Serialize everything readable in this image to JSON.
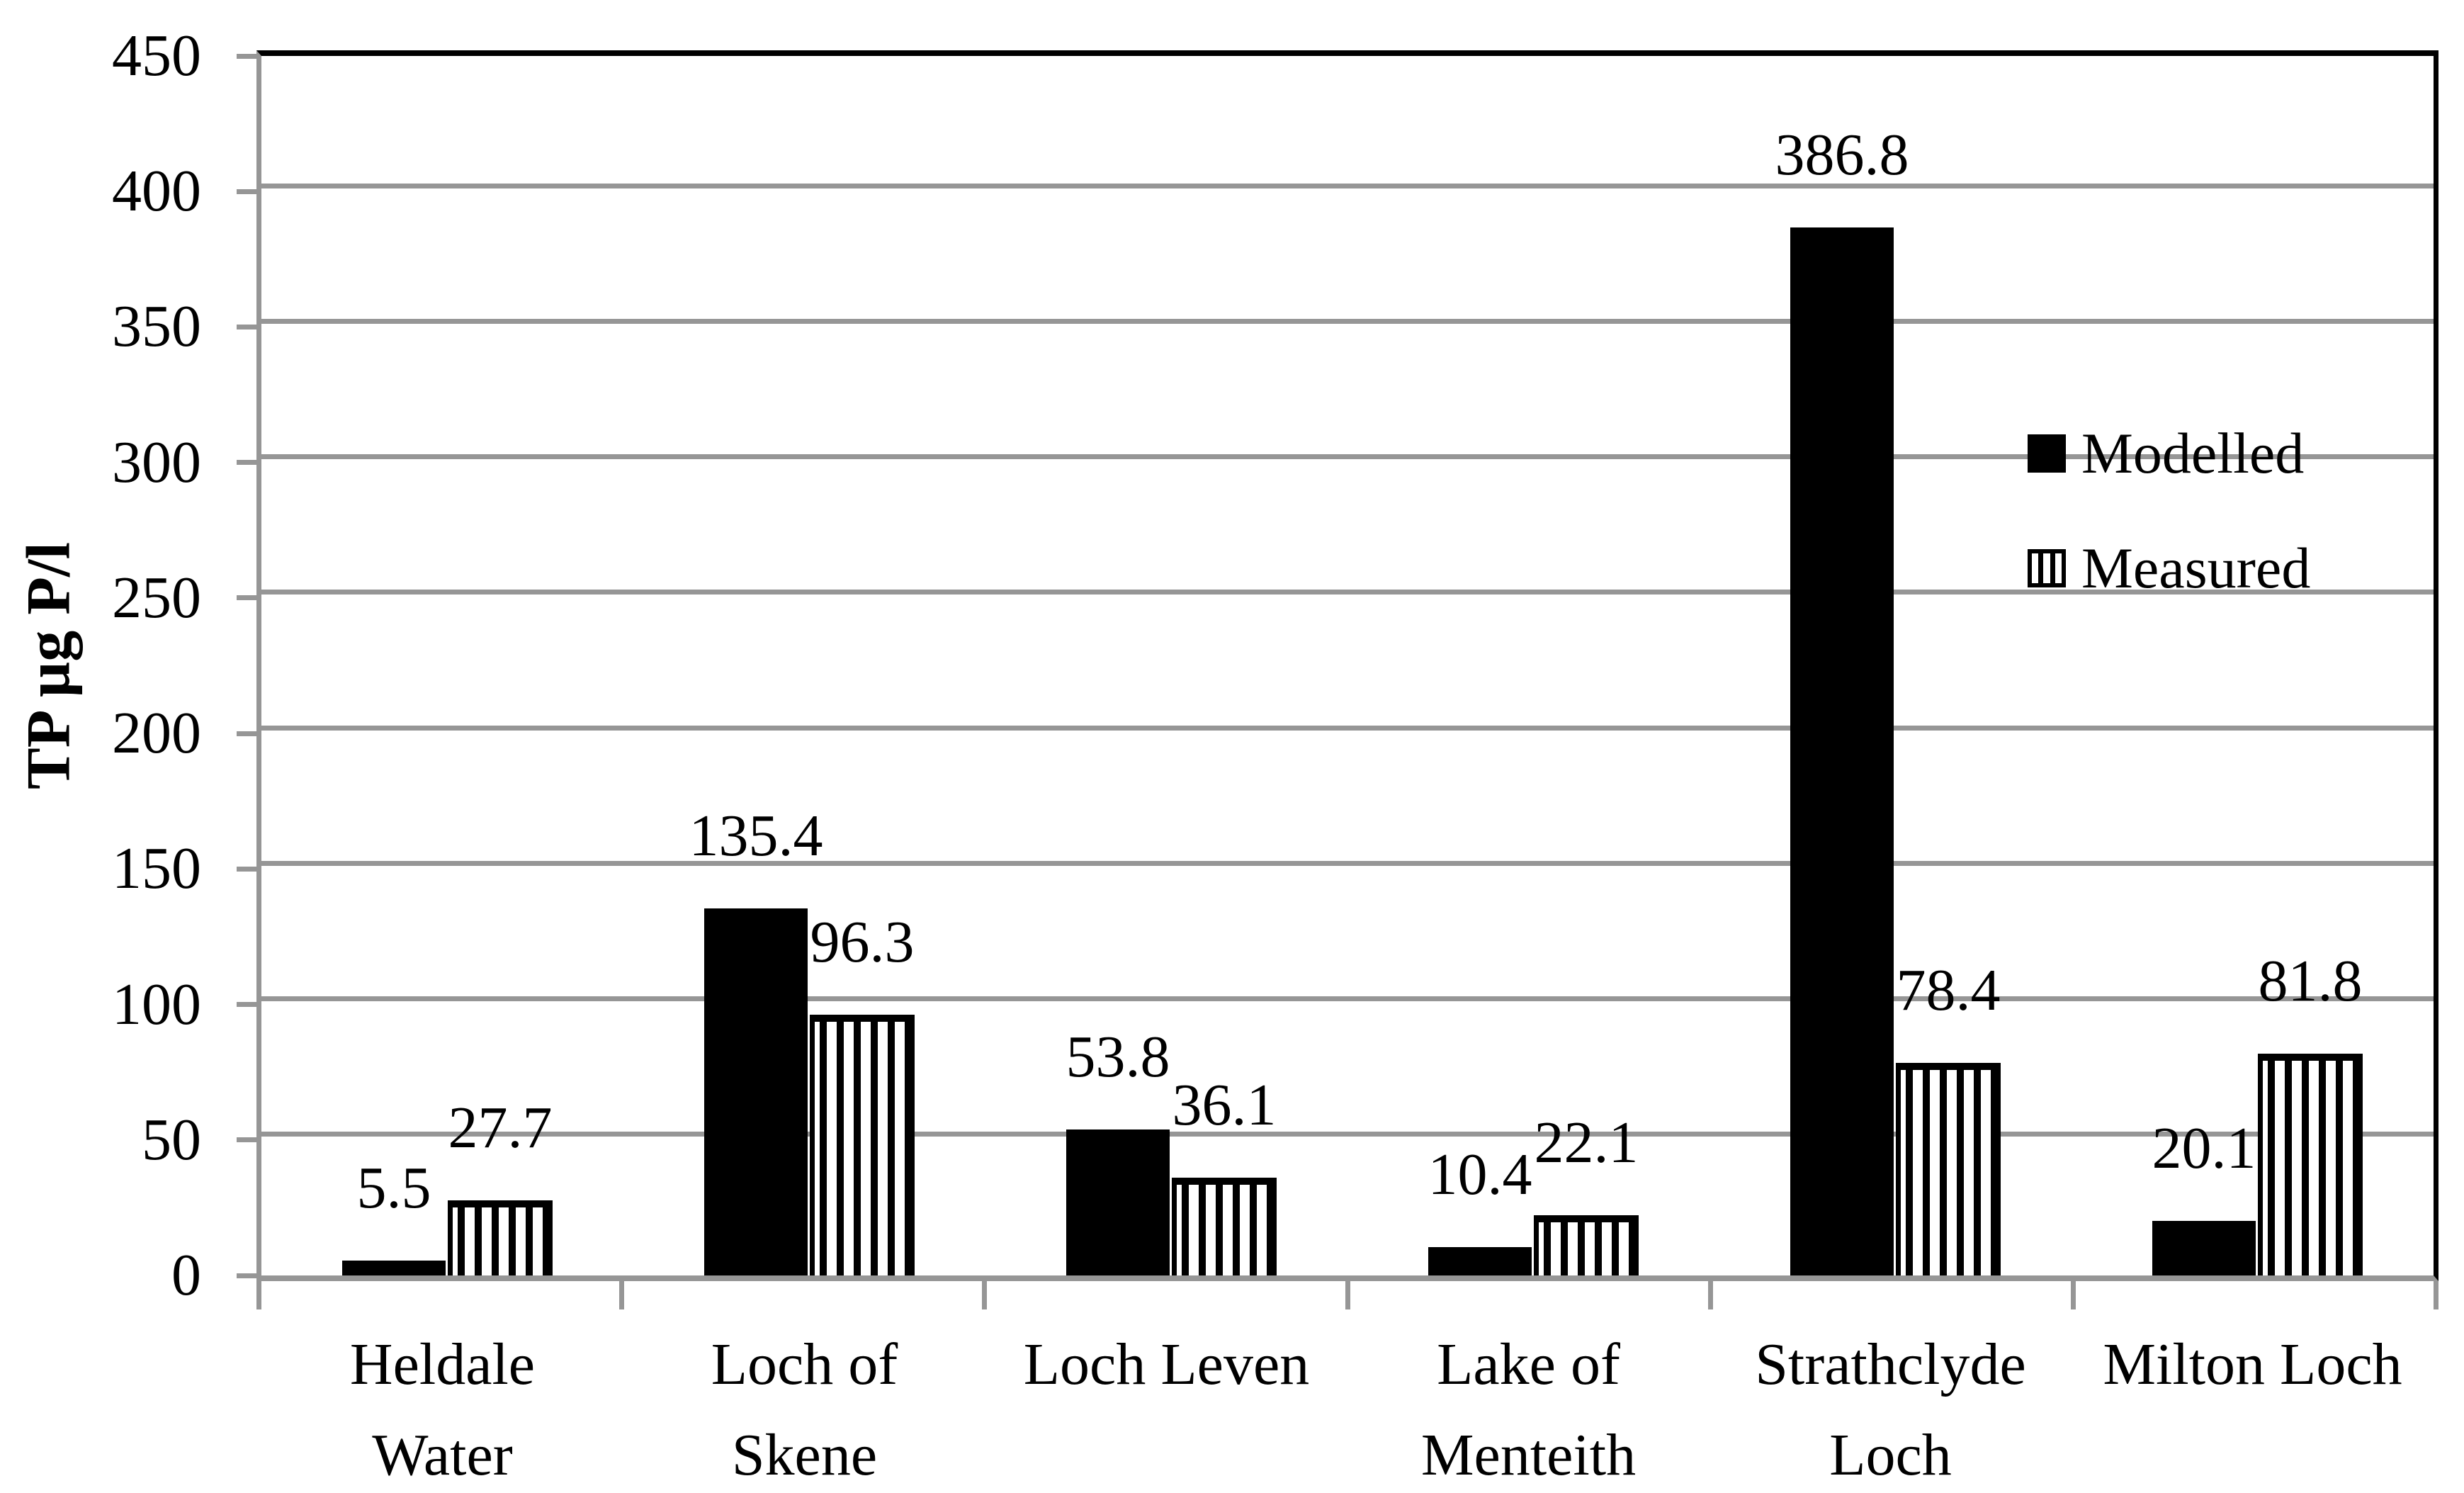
{
  "chart_data": {
    "type": "bar",
    "title": "",
    "xlabel": "",
    "ylabel": "TP µg P/l",
    "ylim": [
      0,
      450
    ],
    "ytick_step": 50,
    "yticks": [
      0,
      50,
      100,
      150,
      200,
      250,
      300,
      350,
      400,
      450
    ],
    "ytick_labels": [
      "0",
      "50",
      "100",
      "150",
      "200",
      "250",
      "300",
      "350",
      "400",
      "450"
    ],
    "grid": "horizontal-gray",
    "legend_position": "inside-right",
    "categories": [
      {
        "label": "Heldale Water",
        "lines": [
          "Heldale",
          "Water"
        ]
      },
      {
        "label": "Loch of Skene",
        "lines": [
          "Loch of",
          "Skene"
        ]
      },
      {
        "label": "Loch Leven",
        "lines": [
          "Loch Leven"
        ]
      },
      {
        "label": "Lake of Menteith",
        "lines": [
          "Lake of",
          "Menteith"
        ]
      },
      {
        "label": "Strathclyde Loch",
        "lines": [
          "Strathclyde",
          "Loch"
        ]
      },
      {
        "label": "Milton Loch",
        "lines": [
          "Milton Loch"
        ]
      }
    ],
    "series": [
      {
        "name": "Modelled",
        "pattern": "solid-black",
        "values": [
          5.5,
          135.4,
          53.8,
          10.4,
          386.8,
          20.1
        ],
        "data_labels": [
          "5.5",
          "135.4",
          "53.8",
          "10.4",
          "386.8",
          "20.1"
        ]
      },
      {
        "name": "Measured",
        "pattern": "vertical-stripes",
        "values": [
          27.7,
          96.3,
          36.1,
          22.1,
          78.4,
          81.8
        ],
        "data_labels": [
          "27.7",
          "96.3",
          "36.1",
          "22.1",
          "78.4",
          "81.8"
        ]
      }
    ],
    "colors": {
      "bar_fill": "#000000",
      "grid": "#969696",
      "axis": "#969696",
      "plot_border_top_right": "#000000",
      "text": "#000000",
      "background": "#ffffff"
    }
  }
}
